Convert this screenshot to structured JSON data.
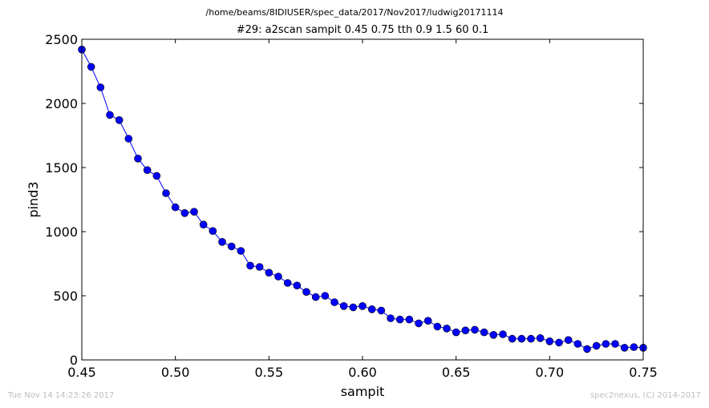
{
  "suptitle": "/home/beams/8IDIUSER/spec_data/2017/Nov2017/ludwig20171114",
  "footer": {
    "left": "Tue Nov 14 14:23:26 2017",
    "right": "spec2nexus, (C) 2014-2017"
  },
  "chart_data": {
    "type": "line",
    "title": "#29: a2scan  sampit 0.45 0.75  tth 0.9 1.5  60 0.1",
    "xlabel": "sampit",
    "ylabel": "pind3",
    "xlim": [
      0.45,
      0.75
    ],
    "ylim": [
      0,
      2500
    ],
    "xticks": [
      0.45,
      0.5,
      0.55,
      0.6,
      0.65,
      0.7,
      0.75
    ],
    "xtick_labels": [
      "0.45",
      "0.50",
      "0.55",
      "0.60",
      "0.65",
      "0.70",
      "0.75"
    ],
    "yticks": [
      0,
      500,
      1000,
      1500,
      2000,
      2500
    ],
    "ytick_labels": [
      "0",
      "500",
      "1000",
      "1500",
      "2000",
      "2500"
    ],
    "grid": false,
    "colors": {
      "line": "#0000ff",
      "marker": "#0000ff"
    },
    "series": [
      {
        "x": [
          0.45,
          0.455,
          0.46,
          0.465,
          0.47,
          0.475,
          0.48,
          0.485,
          0.49,
          0.495,
          0.5,
          0.505,
          0.51,
          0.515,
          0.52,
          0.525,
          0.53,
          0.535,
          0.54,
          0.545,
          0.55,
          0.555,
          0.56,
          0.565,
          0.57,
          0.575,
          0.58,
          0.585,
          0.59,
          0.595,
          0.6,
          0.605,
          0.61,
          0.615,
          0.62,
          0.625,
          0.63,
          0.635,
          0.64,
          0.645,
          0.65,
          0.655,
          0.66,
          0.665,
          0.67,
          0.675,
          0.68,
          0.685,
          0.69,
          0.695,
          0.7,
          0.705,
          0.71,
          0.715,
          0.72,
          0.725,
          0.73,
          0.735,
          0.74,
          0.745,
          0.75
        ],
        "y": [
          2420,
          2285,
          2125,
          1910,
          1870,
          1725,
          1570,
          1480,
          1435,
          1300,
          1190,
          1145,
          1155,
          1055,
          1005,
          920,
          885,
          850,
          735,
          725,
          680,
          650,
          600,
          580,
          530,
          490,
          500,
          450,
          420,
          410,
          420,
          395,
          385,
          325,
          315,
          315,
          285,
          305,
          260,
          245,
          215,
          230,
          235,
          215,
          195,
          200,
          165,
          165,
          165,
          170,
          145,
          135,
          155,
          125,
          85,
          110,
          125,
          125,
          95,
          100,
          95
        ]
      }
    ]
  }
}
